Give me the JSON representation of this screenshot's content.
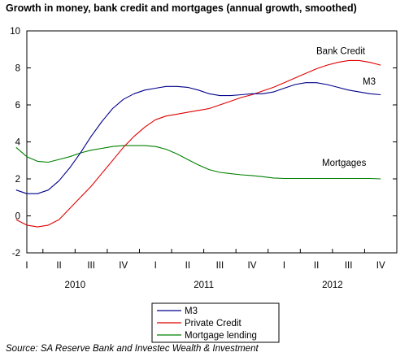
{
  "chart_data": {
    "type": "line",
    "title": "Growth in money, bank credit and mortgages (annual growth, smoothed)",
    "source": "Source: SA Reserve Bank and Investec Wealth & Investment",
    "ylim": [
      -2,
      10
    ],
    "yticks": [
      -2,
      0,
      2,
      4,
      6,
      8,
      10
    ],
    "grid": false,
    "legend_position": "bottom-center",
    "quarter_labels": [
      "I",
      "II",
      "III",
      "IV",
      "I",
      "II",
      "III",
      "IV",
      "I",
      "II",
      "III",
      "IV"
    ],
    "year_labels": [
      "2010",
      "2011",
      "2012"
    ],
    "x": [
      "2010-01",
      "2010-02",
      "2010-03",
      "2010-04",
      "2010-05",
      "2010-06",
      "2010-07",
      "2010-08",
      "2010-09",
      "2010-10",
      "2010-11",
      "2010-12",
      "2011-01",
      "2011-02",
      "2011-03",
      "2011-04",
      "2011-05",
      "2011-06",
      "2011-07",
      "2011-08",
      "2011-09",
      "2011-10",
      "2011-11",
      "2011-12",
      "2012-01",
      "2012-02",
      "2012-03",
      "2012-04",
      "2012-05",
      "2012-06",
      "2012-07",
      "2012-08",
      "2012-09",
      "2012-10",
      "2012-11"
    ],
    "series": [
      {
        "name": "M3",
        "color": "#00008b",
        "label": "M3",
        "values": [
          1.4,
          1.2,
          1.2,
          1.4,
          1.9,
          2.6,
          3.4,
          4.3,
          5.1,
          5.8,
          6.3,
          6.6,
          6.8,
          6.9,
          7.0,
          7.0,
          6.95,
          6.8,
          6.6,
          6.5,
          6.5,
          6.55,
          6.6,
          6.6,
          6.7,
          6.9,
          7.1,
          7.2,
          7.2,
          7.1,
          6.95,
          6.8,
          6.7,
          6.6,
          6.55
        ]
      },
      {
        "name": "Private Credit",
        "color": "#e00000",
        "label": "Bank Credit",
        "values": [
          -0.2,
          -0.5,
          -0.6,
          -0.5,
          -0.2,
          0.4,
          1.0,
          1.6,
          2.3,
          3.0,
          3.7,
          4.3,
          4.8,
          5.2,
          5.4,
          5.5,
          5.6,
          5.7,
          5.8,
          6.0,
          6.2,
          6.4,
          6.55,
          6.75,
          6.95,
          7.2,
          7.45,
          7.7,
          7.95,
          8.15,
          8.3,
          8.4,
          8.4,
          8.3,
          8.15
        ]
      },
      {
        "name": "Mortgage lending",
        "color": "#008000",
        "label": "Mortgages",
        "values": [
          3.7,
          3.2,
          2.95,
          2.9,
          3.05,
          3.2,
          3.4,
          3.55,
          3.65,
          3.75,
          3.8,
          3.8,
          3.8,
          3.75,
          3.6,
          3.35,
          3.05,
          2.75,
          2.5,
          2.35,
          2.28,
          2.22,
          2.18,
          2.12,
          2.05,
          2.02,
          2.02,
          2.02,
          2.02,
          2.02,
          2.02,
          2.02,
          2.02,
          2.02,
          2.0
        ]
      }
    ]
  }
}
